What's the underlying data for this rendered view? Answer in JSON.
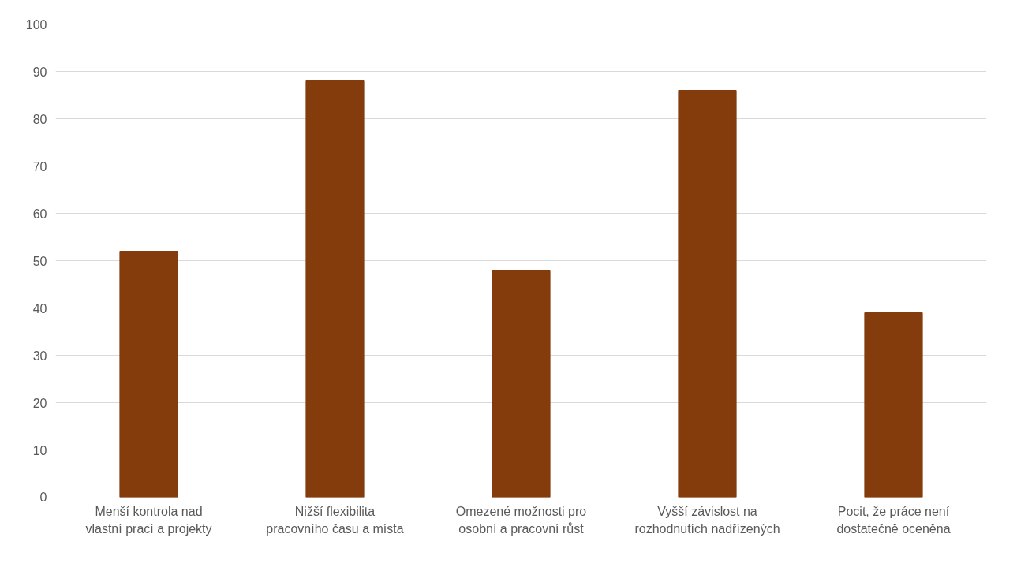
{
  "chart_data": {
    "type": "bar",
    "categories": [
      "Menší kontrola nad vlastní prací a projekty",
      "Nižší flexibilita pracovního času a místa",
      "Omezené možnosti pro osobní a pracovní růst",
      "Vyšší závislost na rozhodnutích nadřízených",
      "Pocit, že práce není dostatečně oceněna"
    ],
    "values": [
      52,
      88,
      48,
      86,
      39
    ],
    "color": "#843c0c",
    "ylim": [
      0,
      100
    ],
    "yticks": [
      0,
      10,
      20,
      30,
      40,
      50,
      60,
      70,
      80,
      90,
      100
    ],
    "grid": "y"
  }
}
